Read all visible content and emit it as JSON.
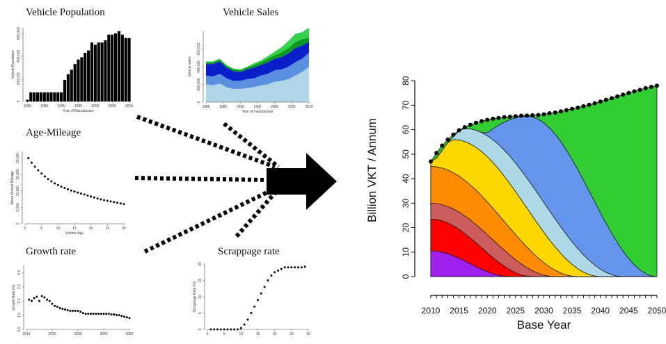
{
  "titles": {
    "vehicle_population": "Vehicle Population",
    "vehicle_sales": "Vehicle Sales",
    "age_mileage": "Age-Mileage",
    "growth_rate": "Growth rate",
    "scrappage_rate": "Scrappage rate"
  },
  "chart_data": [
    {
      "id": "vehicle_population",
      "type": "bar",
      "xlabel": "Year of Manufacture",
      "ylabel": "Vehicle Population",
      "x_ticks": [
        "1980",
        "1985",
        "1990",
        "1995",
        "2000",
        "2005",
        "2010"
      ],
      "y_ticks": [
        "0",
        "200,000",
        "400,000",
        "600,000"
      ],
      "ylim": [
        0,
        650000
      ],
      "x": [
        1980,
        1981,
        1982,
        1983,
        1984,
        1985,
        1986,
        1987,
        1988,
        1989,
        1990,
        1991,
        1992,
        1993,
        1994,
        1995,
        1996,
        1997,
        1998,
        1999,
        2000,
        2001,
        2002,
        2003,
        2004,
        2005,
        2006,
        2007,
        2008,
        2009,
        2010
      ],
      "values": [
        15000,
        80000,
        80000,
        80000,
        80000,
        80000,
        80000,
        80000,
        80000,
        80000,
        80000,
        190000,
        240000,
        280000,
        330000,
        370000,
        390000,
        430000,
        450000,
        520000,
        500000,
        520000,
        520000,
        540000,
        590000,
        590000,
        600000,
        620000,
        590000,
        560000,
        560000
      ]
    },
    {
      "id": "vehicle_sales",
      "type": "area",
      "stacked": true,
      "xlabel": "Year of manufacture",
      "ylabel": "Vehicle sales",
      "x_ticks": [
        "1980",
        "1985",
        "1990",
        "1995",
        "2000",
        "2005",
        "2010"
      ],
      "y_ticks": [
        "0",
        "200,000",
        "400,000",
        "600,000"
      ],
      "ylim": [
        0,
        800000
      ],
      "x": [
        1980,
        1982,
        1984,
        1986,
        1988,
        1990,
        1992,
        1994,
        1996,
        1998,
        2000,
        2002,
        2004,
        2006,
        2008,
        2010
      ],
      "colors": [
        "#aed6e6",
        "#5b8fe0",
        "#0a1fc9",
        "#0d9a20",
        "#35d14a"
      ],
      "series": [
        {
          "values": [
            200000,
            190000,
            210000,
            170000,
            150000,
            150000,
            160000,
            170000,
            190000,
            200000,
            230000,
            240000,
            260000,
            300000,
            340000,
            400000
          ]
        },
        {
          "values": [
            100000,
            100000,
            110000,
            100000,
            90000,
            90000,
            100000,
            100000,
            110000,
            120000,
            130000,
            130000,
            140000,
            150000,
            150000,
            160000
          ]
        },
        {
          "values": [
            130000,
            140000,
            140000,
            120000,
            110000,
            100000,
            110000,
            120000,
            120000,
            130000,
            130000,
            140000,
            150000,
            160000,
            150000,
            120000
          ]
        },
        {
          "values": [
            20000,
            20000,
            20000,
            20000,
            20000,
            20000,
            20000,
            30000,
            30000,
            40000,
            40000,
            50000,
            60000,
            70000,
            70000,
            50000
          ]
        },
        {
          "values": [
            10000,
            10000,
            10000,
            10000,
            10000,
            10000,
            10000,
            20000,
            20000,
            30000,
            40000,
            60000,
            80000,
            90000,
            80000,
            110000
          ]
        }
      ]
    },
    {
      "id": "age_mileage",
      "type": "scatter",
      "xlabel": "Vehicle Age",
      "ylabel": "Mean Annual Mileage",
      "x_ticks": [
        "0",
        "5",
        "10",
        "15",
        "20",
        "25",
        "30"
      ],
      "y_ticks": [
        "0",
        "5,000",
        "10,000",
        "15,000",
        "20,000"
      ],
      "xlim": [
        0,
        30
      ],
      "ylim": [
        0,
        22000
      ],
      "x": [
        1,
        2,
        3,
        4,
        5,
        6,
        7,
        8,
        9,
        10,
        11,
        12,
        13,
        14,
        15,
        16,
        17,
        18,
        19,
        20,
        21,
        22,
        23,
        24,
        25,
        26,
        27,
        28,
        29,
        30
      ],
      "y": [
        20000,
        18600,
        17400,
        16300,
        15300,
        14400,
        13600,
        12900,
        12300,
        11800,
        11300,
        10900,
        10500,
        10100,
        9800,
        9500,
        9200,
        8900,
        8600,
        8300,
        8000,
        7700,
        7400,
        7200,
        7000,
        6800,
        6600,
        6400,
        6200,
        6000
      ]
    },
    {
      "id": "growth_rate",
      "type": "scatter",
      "xlabel": "",
      "ylabel": "Growth Rate (%)",
      "x_ticks": [
        "2010",
        "2020",
        "2030",
        "2040",
        "2050"
      ],
      "y_ticks": [
        "0.0",
        "1.0",
        "2.0",
        "3.0",
        "4.0"
      ],
      "xlim": [
        2010,
        2050
      ],
      "ylim": [
        0,
        4.5
      ],
      "x": [
        2011,
        2012,
        2013,
        2014,
        2015,
        2016,
        2017,
        2018,
        2019,
        2020,
        2021,
        2022,
        2023,
        2024,
        2025,
        2026,
        2027,
        2028,
        2029,
        2030,
        2031,
        2032,
        2033,
        2034,
        2035,
        2036,
        2037,
        2038,
        2039,
        2040,
        2041,
        2042,
        2043,
        2044,
        2045,
        2046,
        2047,
        2048,
        2049,
        2050
      ],
      "y": [
        2.1,
        2.0,
        2.2,
        2.3,
        2.0,
        2.35,
        2.25,
        2.1,
        2.0,
        1.8,
        1.65,
        1.6,
        1.5,
        1.45,
        1.4,
        1.35,
        1.3,
        1.3,
        1.3,
        1.3,
        1.25,
        1.15,
        1.1,
        1.1,
        1.1,
        1.1,
        1.1,
        1.1,
        1.1,
        1.1,
        1.1,
        1.1,
        1.05,
        1.05,
        1.0,
        1.0,
        0.95,
        0.9,
        0.85,
        0.8
      ]
    },
    {
      "id": "scrappage_rate",
      "type": "scatter",
      "xlabel": "",
      "ylabel": "Scrappage Rate (%)",
      "x_ticks": [
        "0",
        "5",
        "10",
        "15",
        "20",
        "25",
        "30"
      ],
      "y_ticks": [
        "0",
        "5",
        "10",
        "15",
        "20"
      ],
      "xlim": [
        0,
        30
      ],
      "ylim": [
        0,
        20
      ],
      "x": [
        1,
        2,
        3,
        4,
        5,
        6,
        7,
        8,
        9,
        10,
        11,
        12,
        13,
        14,
        15,
        16,
        17,
        18,
        19,
        20,
        21,
        22,
        23,
        24,
        25,
        26,
        27,
        28,
        29
      ],
      "y": [
        0,
        0,
        0,
        0,
        0,
        0,
        0,
        0,
        0,
        0.4,
        1.5,
        3,
        5,
        7,
        9,
        11,
        13,
        15,
        16.5,
        17.5,
        18,
        18.5,
        19,
        19,
        19,
        19,
        19,
        19,
        19.2
      ]
    },
    {
      "id": "vkt",
      "type": "area",
      "stacked": true,
      "xlabel": "Base Year",
      "ylabel": "Billion VKT / Annum",
      "x_ticks": [
        "2010",
        "2015",
        "2020",
        "2025",
        "2030",
        "2035",
        "2040",
        "2045",
        "2050"
      ],
      "y_ticks": [
        "0",
        "10",
        "20",
        "30",
        "40",
        "50",
        "60",
        "70",
        "80"
      ],
      "xlim": [
        2010,
        2050
      ],
      "ylim": [
        0,
        88
      ],
      "total_marker_color": "#000000",
      "x": [
        2010,
        2011,
        2012,
        2013,
        2014,
        2015,
        2016,
        2017,
        2018,
        2019,
        2020,
        2021,
        2022,
        2023,
        2024,
        2025,
        2026,
        2027,
        2028,
        2029,
        2030,
        2031,
        2032,
        2033,
        2034,
        2035,
        2036,
        2037,
        2038,
        2039,
        2040,
        2041,
        2042,
        2043,
        2044,
        2045,
        2046,
        2047,
        2048,
        2049,
        2050
      ],
      "total": [
        47,
        50.5,
        53.5,
        56,
        58,
        59.8,
        61,
        62,
        62.8,
        63.5,
        64,
        64.5,
        64.8,
        65.1,
        65.3,
        65.5,
        65.7,
        65.8,
        65.9,
        66,
        66.3,
        66.7,
        67,
        67.5,
        68,
        68.5,
        69,
        69.6,
        70.2,
        70.8,
        71.5,
        72.2,
        72.9,
        73.6,
        74.3,
        75,
        75.7,
        76.3,
        77,
        77.5,
        78
      ],
      "series_order_bottom_to_top": [
        "purple",
        "red",
        "indianred",
        "darkorange",
        "gold",
        "lightblue",
        "cornflowerblue",
        "green"
      ],
      "colors": [
        "#a020f0",
        "#ff0000",
        "#cd5c5c",
        "#ff8c00",
        "#ffd700",
        "#add8e6",
        "#6495ed",
        "#32cd32"
      ],
      "band_peaks": [
        {
          "color": "#a020f0",
          "start_value": 10.5,
          "fades_by": 2024
        },
        {
          "color": "#ff0000",
          "start_value": 23.5,
          "fades_by": 2028
        },
        {
          "color": "#cd5c5c",
          "start_value": 30,
          "fades_by": 2032
        },
        {
          "color": "#ff8c00",
          "start_value": 45,
          "fades_by": 2036
        },
        {
          "color": "#ffd700",
          "start_value": 47,
          "peak_value": 56,
          "peak_year": 2014,
          "fades_by": 2040
        },
        {
          "color": "#add8e6",
          "start_value": 47,
          "peak_value": 60.5,
          "peak_year": 2016,
          "fades_by": 2044
        },
        {
          "color": "#6495ed",
          "start_value": 47,
          "peak_value": 65.5,
          "peak_year": 2027,
          "fades_by": 2050
        }
      ]
    }
  ]
}
